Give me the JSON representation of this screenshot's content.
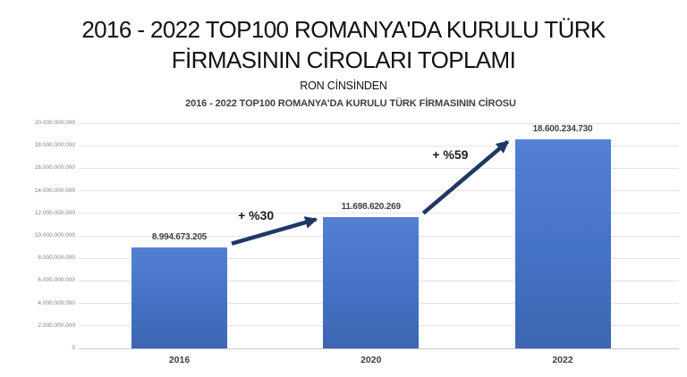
{
  "title": {
    "line1": "2016 - 2022 TOP100 ROMANYA'DA KURULU TÜRK",
    "line2": "FİRMASININ CİROLARI TOPLAMI",
    "subtitle": "RON CİNSİNDEN"
  },
  "chart_data": {
    "type": "bar",
    "title": "2016 - 2022 TOP100 ROMANYA'DA KURULU TÜRK FİRMASININ CİROSU",
    "categories": [
      "2016",
      "2020",
      "2022"
    ],
    "values": [
      8994673205,
      11698620269,
      18600234730
    ],
    "value_labels": [
      "8.994.673.205",
      "11.698.620.269",
      "18.600.234.730"
    ],
    "xlabel": "",
    "ylabel": "",
    "ylim": [
      0,
      20000000000
    ],
    "y_tick_step": 2000000000,
    "y_tick_labels": [
      "0",
      "2.000.000.000",
      "4.000.000.000",
      "6.000.000.000",
      "8.000.000.000",
      "10.000.000.000",
      "12.000.000.000",
      "14.000.000.000",
      "16.000.000.000",
      "18.000.000.000",
      "20.000.000.000"
    ],
    "grid": true,
    "legend": false,
    "annotations": [
      {
        "label": "+ %30",
        "from_index": 0,
        "to_index": 1
      },
      {
        "label": "+ %59",
        "from_index": 1,
        "to_index": 2
      }
    ],
    "colors": {
      "bar_top": "#5480d3",
      "bar_bottom": "#3c66b2",
      "arrow": "#1f3864",
      "grid": "#e3e3e3",
      "axis": "#c9c9c9",
      "tick_text": "#7f7f7f",
      "label_text": "#3f3f3f"
    }
  }
}
